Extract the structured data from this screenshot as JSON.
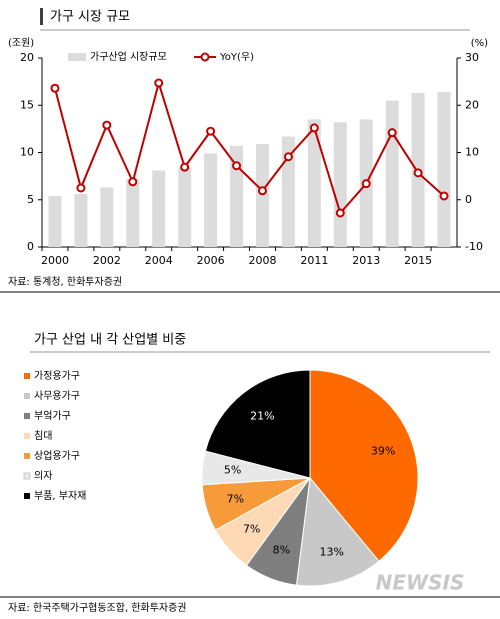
{
  "chart_data": [
    {
      "type": "combo",
      "title": "가구 시장 규모",
      "y_unit": "(조원)",
      "y2_unit": "(%)",
      "categories": [
        "2000",
        null,
        "2002",
        null,
        "2004",
        null,
        "2006",
        null,
        "2008",
        null,
        "2011",
        null,
        "2013",
        null,
        "2015",
        null
      ],
      "series": [
        {
          "name": "가구산업 시장규모",
          "type": "bar",
          "color": "#dcdcdc",
          "values": [
            5.4,
            5.6,
            6.3,
            7.2,
            8.1,
            8.4,
            9.9,
            10.7,
            10.9,
            11.7,
            13.5,
            13.2,
            13.5,
            15.5,
            16.3,
            16.4
          ]
        },
        {
          "name": "YoY(우)",
          "type": "line",
          "axis": "y2",
          "color": "#c00000",
          "values": [
            23.6,
            2.5,
            15.8,
            3.8,
            24.7,
            6.9,
            14.5,
            7.2,
            1.9,
            9.1,
            15.2,
            -2.8,
            3.4,
            14.2,
            5.7,
            0.8
          ]
        }
      ],
      "ylim": [
        0,
        20
      ],
      "yticks": [
        0,
        5,
        10,
        15,
        20
      ],
      "y2lim": [
        -10,
        30
      ],
      "y2ticks": [
        -10,
        0,
        10,
        20,
        30
      ],
      "source": "자료: 통계청, 한화투자증권"
    },
    {
      "type": "pie",
      "title": "가구 산업 내 각 산업별 비중",
      "categories": [
        "가정용가구",
        "사무용가구",
        "부엌가구",
        "침대",
        "상업용가구",
        "의자",
        "부품, 부자재"
      ],
      "values": [
        39,
        13,
        8,
        7,
        7,
        5,
        21
      ],
      "value_labels": [
        "39%",
        "13%",
        "8%",
        "7%",
        "7%",
        "5%",
        "21%"
      ],
      "colors": [
        "#ff6a00",
        "#c8c8c8",
        "#7f7f7f",
        "#fdd9b5",
        "#f79a3a",
        "#e8e8e8",
        "#000000"
      ],
      "source": "자료: 한국주택가구협동조합, 한화투자증권",
      "watermark": "NEWSIS"
    }
  ]
}
